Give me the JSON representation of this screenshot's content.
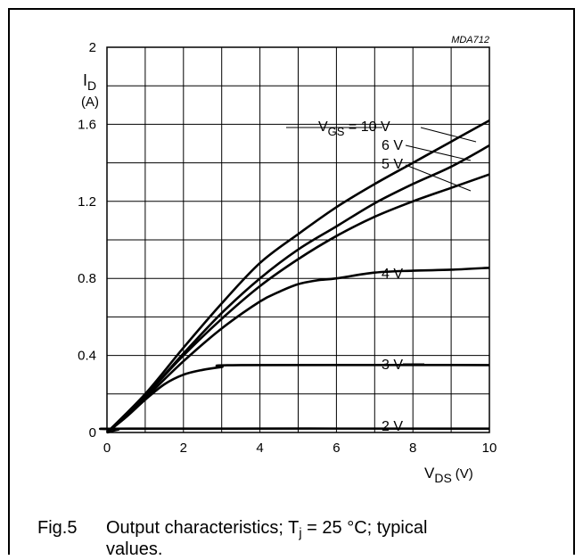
{
  "chart_data": {
    "type": "line",
    "code_label": "MDA712",
    "ylabel": "I",
    "ylabel_sub": "D",
    "yunit": "(A)",
    "xlabel": "V",
    "xlabel_sub": "DS",
    "xunit": "(V)",
    "xlim": [
      0,
      10
    ],
    "ylim": [
      0,
      2
    ],
    "grid": true,
    "x_ticks": [
      "0",
      "2",
      "4",
      "6",
      "8",
      "10"
    ],
    "y_ticks": [
      "0",
      "0.4",
      "0.8",
      "1.2",
      "1.6",
      "2"
    ],
    "series": [
      {
        "name": "VGS = 10 V",
        "points": [
          [
            0,
            0
          ],
          [
            1,
            0.2
          ],
          [
            2,
            0.44
          ],
          [
            3,
            0.67
          ],
          [
            4,
            0.88
          ],
          [
            5,
            1.03
          ],
          [
            6,
            1.17
          ],
          [
            7,
            1.29
          ],
          [
            8,
            1.4
          ],
          [
            9,
            1.51
          ],
          [
            10,
            1.62
          ]
        ]
      },
      {
        "name": "6 V",
        "points": [
          [
            0,
            0
          ],
          [
            1,
            0.19
          ],
          [
            2,
            0.41
          ],
          [
            3,
            0.62
          ],
          [
            4,
            0.8
          ],
          [
            5,
            0.95
          ],
          [
            6,
            1.07
          ],
          [
            7,
            1.19
          ],
          [
            8,
            1.29
          ],
          [
            9,
            1.38
          ],
          [
            10,
            1.49
          ]
        ]
      },
      {
        "name": "5 V",
        "points": [
          [
            0,
            0
          ],
          [
            1,
            0.19
          ],
          [
            2,
            0.4
          ],
          [
            3,
            0.59
          ],
          [
            4,
            0.76
          ],
          [
            5,
            0.9
          ],
          [
            6,
            1.02
          ],
          [
            7,
            1.12
          ],
          [
            8,
            1.2
          ],
          [
            9,
            1.27
          ],
          [
            10,
            1.34
          ]
        ]
      },
      {
        "name": "4 V",
        "points": [
          [
            0,
            0
          ],
          [
            1,
            0.18
          ],
          [
            2,
            0.37
          ],
          [
            3,
            0.54
          ],
          [
            4,
            0.68
          ],
          [
            4.5,
            0.73
          ],
          [
            5,
            0.77
          ],
          [
            5.5,
            0.79
          ],
          [
            6,
            0.8
          ],
          [
            7,
            0.83
          ],
          [
            8,
            0.84
          ],
          [
            9,
            0.845
          ],
          [
            10,
            0.855
          ]
        ]
      },
      {
        "name": "3 V",
        "points": [
          [
            0,
            0
          ],
          [
            0.5,
            0.08
          ],
          [
            1,
            0.17
          ],
          [
            1.5,
            0.25
          ],
          [
            2,
            0.3
          ],
          [
            2.5,
            0.325
          ],
          [
            3,
            0.34
          ],
          [
            3.5,
            0.35
          ],
          [
            10,
            0.35
          ]
        ]
      },
      {
        "name": "2 V",
        "points": [
          [
            0,
            0
          ],
          [
            0.3,
            0.015
          ],
          [
            0.6,
            0.02
          ],
          [
            10,
            0.02
          ]
        ]
      }
    ],
    "annotations": {
      "series_labels": [
        "V",
        "GS",
        " = 10 V",
        "6 V",
        "5 V",
        "4 V",
        "3 V",
        "2 V"
      ]
    }
  },
  "caption": {
    "number": "Fig.5",
    "text_a": "Output characteristics; T",
    "text_sub": "j",
    "text_b": " = 25 °C; typical",
    "line2": "values."
  }
}
